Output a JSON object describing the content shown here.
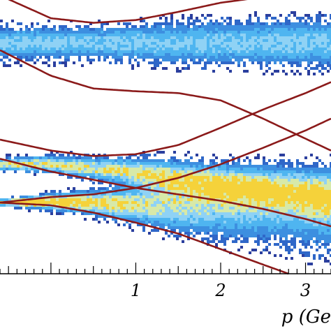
{
  "chart_data": {
    "type": "heatmap",
    "title": "",
    "xlabel": "p (Ge",
    "ylabel": "",
    "xlim": [
      -0.6,
      3.3
    ],
    "ylim": [
      -1.2,
      1.8
    ],
    "x_ticks": [
      "1",
      "2",
      "3"
    ],
    "colormap": [
      "#2b3f9e",
      "#2f67c8",
      "#3d8fe0",
      "#4fb5f0",
      "#8fd2f5",
      "#d7e9a8",
      "#f5d23a"
    ],
    "curve_color": "#8b1a1a",
    "density_bands": [
      {
        "center": [
          [
            0.5,
            1.33
          ],
          [
            1.5,
            1.33
          ],
          [
            3.3,
            1.33
          ]
        ],
        "half_width": [
          [
            0.5,
            0.11
          ],
          [
            1.5,
            0.14
          ],
          [
            3.3,
            0.16
          ]
        ],
        "peak": 0.55
      },
      {
        "center": [
          [
            -0.6,
            0.0
          ],
          [
            0.0,
            0.0
          ],
          [
            1.0,
            -0.09
          ],
          [
            2.0,
            -0.22
          ],
          [
            3.3,
            -0.35
          ]
        ],
        "half_width": [
          [
            -0.6,
            0.04
          ],
          [
            0.5,
            0.07
          ],
          [
            1.5,
            0.12
          ],
          [
            3.3,
            0.18
          ]
        ],
        "peak": 0.8
      },
      {
        "center": [
          [
            -0.6,
            -0.42
          ],
          [
            0.0,
            -0.41
          ],
          [
            1.0,
            -0.44
          ],
          [
            2.0,
            -0.5
          ],
          [
            3.3,
            -0.6
          ]
        ],
        "half_width": [
          [
            -0.6,
            0.02
          ],
          [
            0.5,
            0.08
          ],
          [
            1.5,
            0.17
          ],
          [
            3.3,
            0.27
          ]
        ],
        "peak": 1.0
      }
    ],
    "curves": [
      {
        "points": [
          [
            -0.6,
            1.85
          ],
          [
            0.0,
            1.6
          ],
          [
            0.5,
            1.55
          ],
          [
            1.0,
            1.58
          ],
          [
            1.5,
            1.67
          ],
          [
            2.0,
            1.77
          ],
          [
            2.4,
            1.82
          ]
        ]
      },
      {
        "points": [
          [
            -0.6,
            1.25
          ],
          [
            0.0,
            0.97
          ],
          [
            0.5,
            0.83
          ],
          [
            1.0,
            0.8
          ],
          [
            1.5,
            0.78
          ],
          [
            2.0,
            0.7
          ],
          [
            2.5,
            0.5
          ],
          [
            3.0,
            0.28
          ],
          [
            3.3,
            0.15
          ]
        ]
      },
      {
        "points": [
          [
            -0.6,
            0.27
          ],
          [
            0.0,
            0.15
          ],
          [
            0.5,
            0.09
          ],
          [
            1.0,
            0.11
          ],
          [
            1.5,
            0.21
          ],
          [
            2.0,
            0.4
          ],
          [
            2.5,
            0.6
          ],
          [
            3.0,
            0.78
          ],
          [
            3.3,
            0.9
          ]
        ]
      },
      {
        "points": [
          [
            -0.6,
            0.06
          ],
          [
            0.0,
            -0.08
          ],
          [
            0.5,
            -0.17
          ],
          [
            1.0,
            -0.26
          ],
          [
            1.5,
            -0.33
          ],
          [
            2.0,
            -0.4
          ],
          [
            2.5,
            -0.49
          ],
          [
            3.0,
            -0.6
          ],
          [
            3.3,
            -0.68
          ]
        ]
      },
      {
        "points": [
          [
            -0.6,
            -0.42
          ],
          [
            0.0,
            -0.36
          ],
          [
            0.5,
            -0.33
          ],
          [
            1.0,
            -0.26
          ],
          [
            1.5,
            -0.15
          ],
          [
            2.0,
            0.0
          ],
          [
            2.5,
            0.18
          ],
          [
            3.0,
            0.37
          ],
          [
            3.3,
            0.5
          ]
        ]
      },
      {
        "points": [
          [
            -0.6,
            -0.42
          ],
          [
            0.0,
            -0.45
          ],
          [
            0.5,
            -0.53
          ],
          [
            1.0,
            -0.64
          ],
          [
            1.5,
            -0.76
          ],
          [
            2.0,
            -0.93
          ],
          [
            2.5,
            -1.1
          ],
          [
            2.8,
            -1.2
          ]
        ]
      }
    ]
  }
}
